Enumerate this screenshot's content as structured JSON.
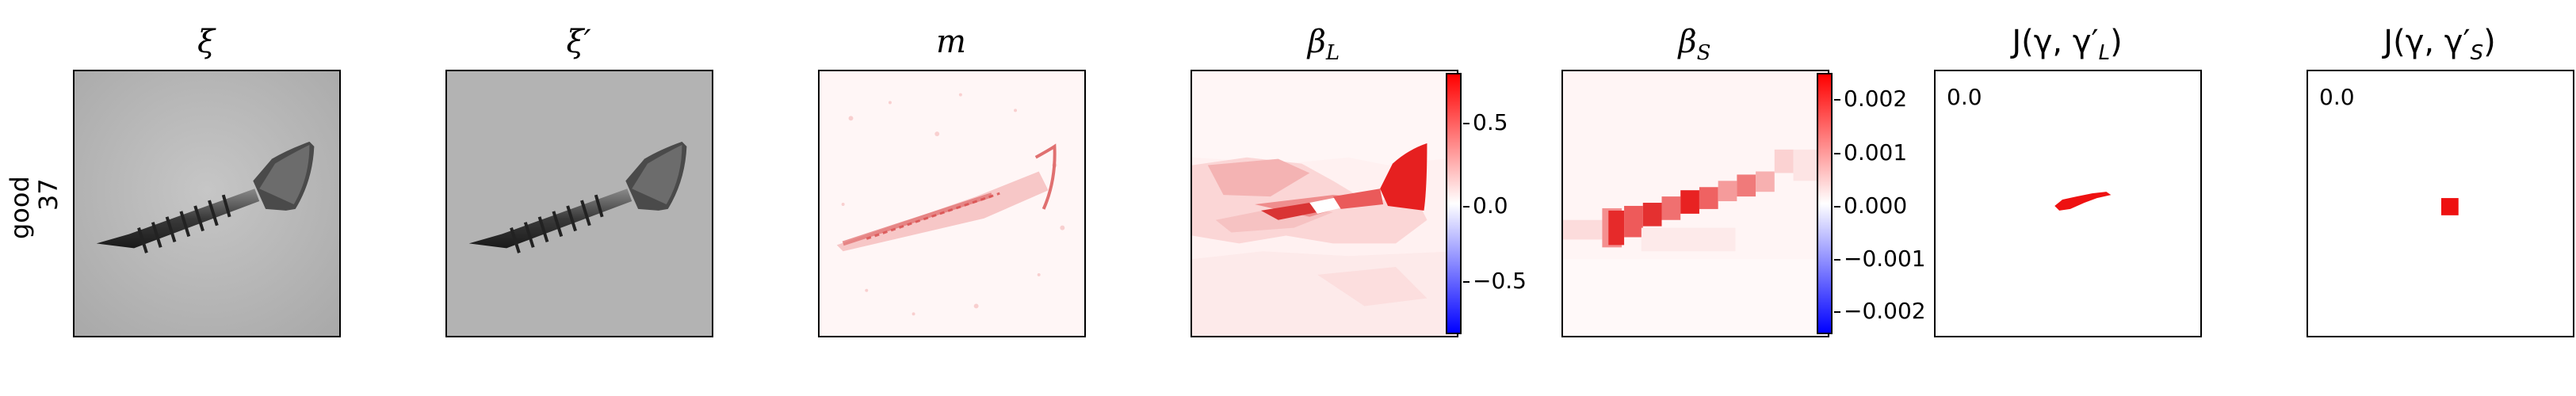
{
  "row": {
    "label_top": "good",
    "label_bottom": "37"
  },
  "panels": {
    "xi": {
      "title": "ξ"
    },
    "xi_prime": {
      "title": "ξ′"
    },
    "m": {
      "title": "m"
    },
    "beta_L": {
      "title_main": "β",
      "title_sub": "L",
      "colorbar_ticks": [
        "0.5",
        "0.0",
        "−0.5"
      ]
    },
    "beta_S": {
      "title_main": "β",
      "title_sub": "S",
      "colorbar_ticks": [
        "0.002",
        "0.001",
        "0.000",
        "−0.001",
        "−0.002"
      ]
    },
    "jacc_L": {
      "title_prefix": "J(γ, γ′",
      "title_sub": "L",
      "title_suffix": ")",
      "value": "0.0"
    },
    "jacc_S": {
      "title_prefix": "J(γ, γ′",
      "title_sub": "S",
      "title_suffix": ")",
      "value": "0.0"
    }
  },
  "colors": {
    "colormap_positive": "#ff0000",
    "colormap_zero": "#ffffff",
    "colormap_negative": "#0000ff",
    "mask_red": "#ee1111"
  }
}
